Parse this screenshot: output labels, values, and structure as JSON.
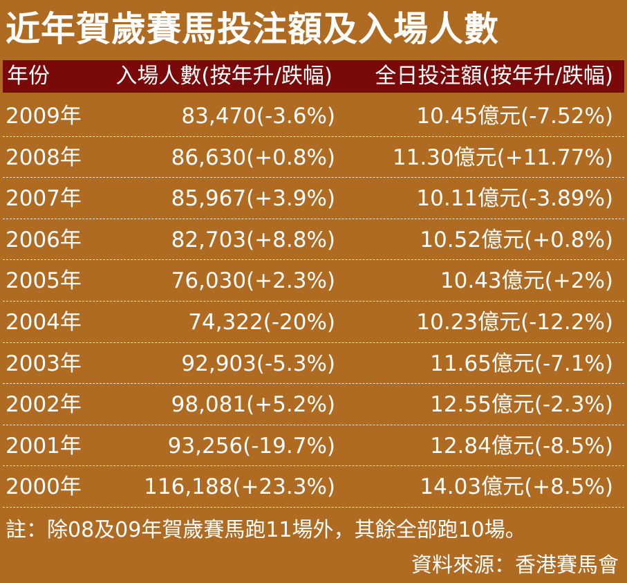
{
  "title": "近年賀歲賽馬投注額及入場人數",
  "table": {
    "headers": {
      "year": "年份",
      "attendance": "入場人數(按年升/跌幅)",
      "turnover": "全日投注額(按年升/跌幅)"
    },
    "rows": [
      {
        "year": "2009年",
        "attendance": "83,470(-3.6%)",
        "turnover": "10.45億元(-7.52%)"
      },
      {
        "year": "2008年",
        "attendance": "86,630(+0.8%)",
        "turnover": "11.30億元(+11.77%)"
      },
      {
        "year": "2007年",
        "attendance": "85,967(+3.9%)",
        "turnover": "10.11億元(-3.89%)"
      },
      {
        "year": "2006年",
        "attendance": "82,703(+8.8%)",
        "turnover": "10.52億元(+0.8%)"
      },
      {
        "year": "2005年",
        "attendance": "76,030(+2.3%)",
        "turnover": "10.43億元(+2%)"
      },
      {
        "year": "2004年",
        "attendance": "74,322(-20%)",
        "turnover": "10.23億元(-12.2%)"
      },
      {
        "year": "2003年",
        "attendance": "92,903(-5.3%)",
        "turnover": "11.65億元(-7.1%)"
      },
      {
        "year": "2002年",
        "attendance": "98,081(+5.2%)",
        "turnover": "12.55億元(-2.3%)"
      },
      {
        "year": "2001年",
        "attendance": "93,256(-19.7%)",
        "turnover": "12.84億元(-8.5%)"
      },
      {
        "year": "2000年",
        "attendance": "116,188(+23.3%)",
        "turnover": "14.03億元(+8.5%)"
      }
    ]
  },
  "note": "註：除08及09年賀歲賽馬跑11場外，其餘全部跑10場。",
  "source": "資料來源：香港賽馬會",
  "colors": {
    "background": "#B06B22",
    "header_bar": "#7A0A0A",
    "text": "#FFFFFF"
  }
}
